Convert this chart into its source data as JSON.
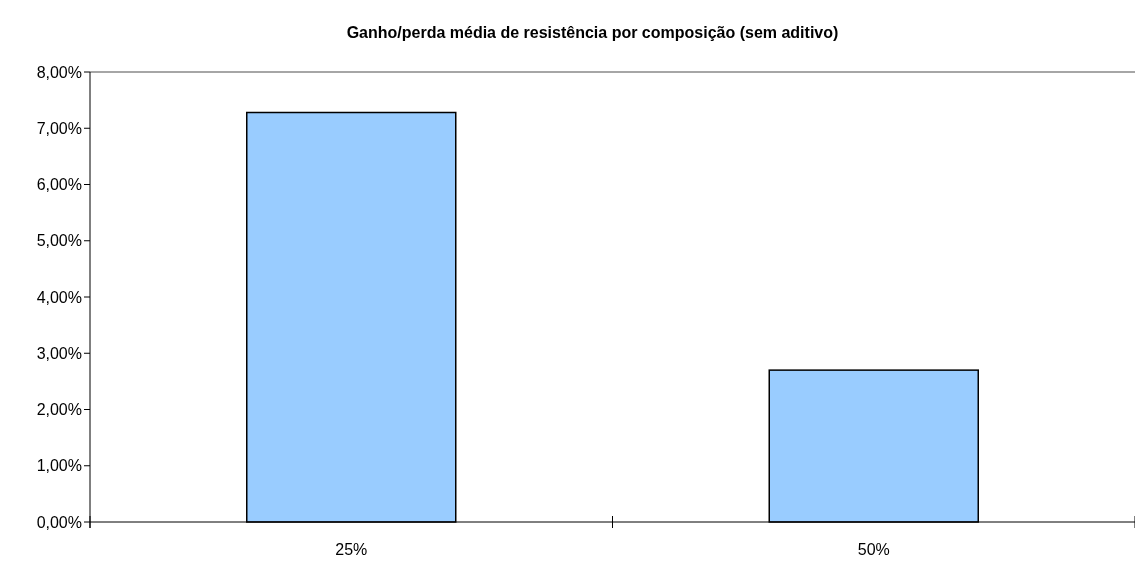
{
  "chart_data": {
    "type": "bar",
    "title": "Ganho/perda média de resistência por composição (sem aditivo)",
    "categories": [
      "25%",
      "50%"
    ],
    "values": [
      7.28,
      2.7
    ],
    "color": "#99ccff",
    "ylim": [
      0,
      8
    ],
    "yticks": [
      {
        "value": 0,
        "label": "0,00%"
      },
      {
        "value": 1,
        "label": "1,00%"
      },
      {
        "value": 2,
        "label": "2,00%"
      },
      {
        "value": 3,
        "label": "3,00%"
      },
      {
        "value": 4,
        "label": "4,00%"
      },
      {
        "value": 5,
        "label": "5,00%"
      },
      {
        "value": 6,
        "label": "6,00%"
      },
      {
        "value": 7,
        "label": "7,00%"
      },
      {
        "value": 8,
        "label": "8,00%"
      }
    ]
  }
}
